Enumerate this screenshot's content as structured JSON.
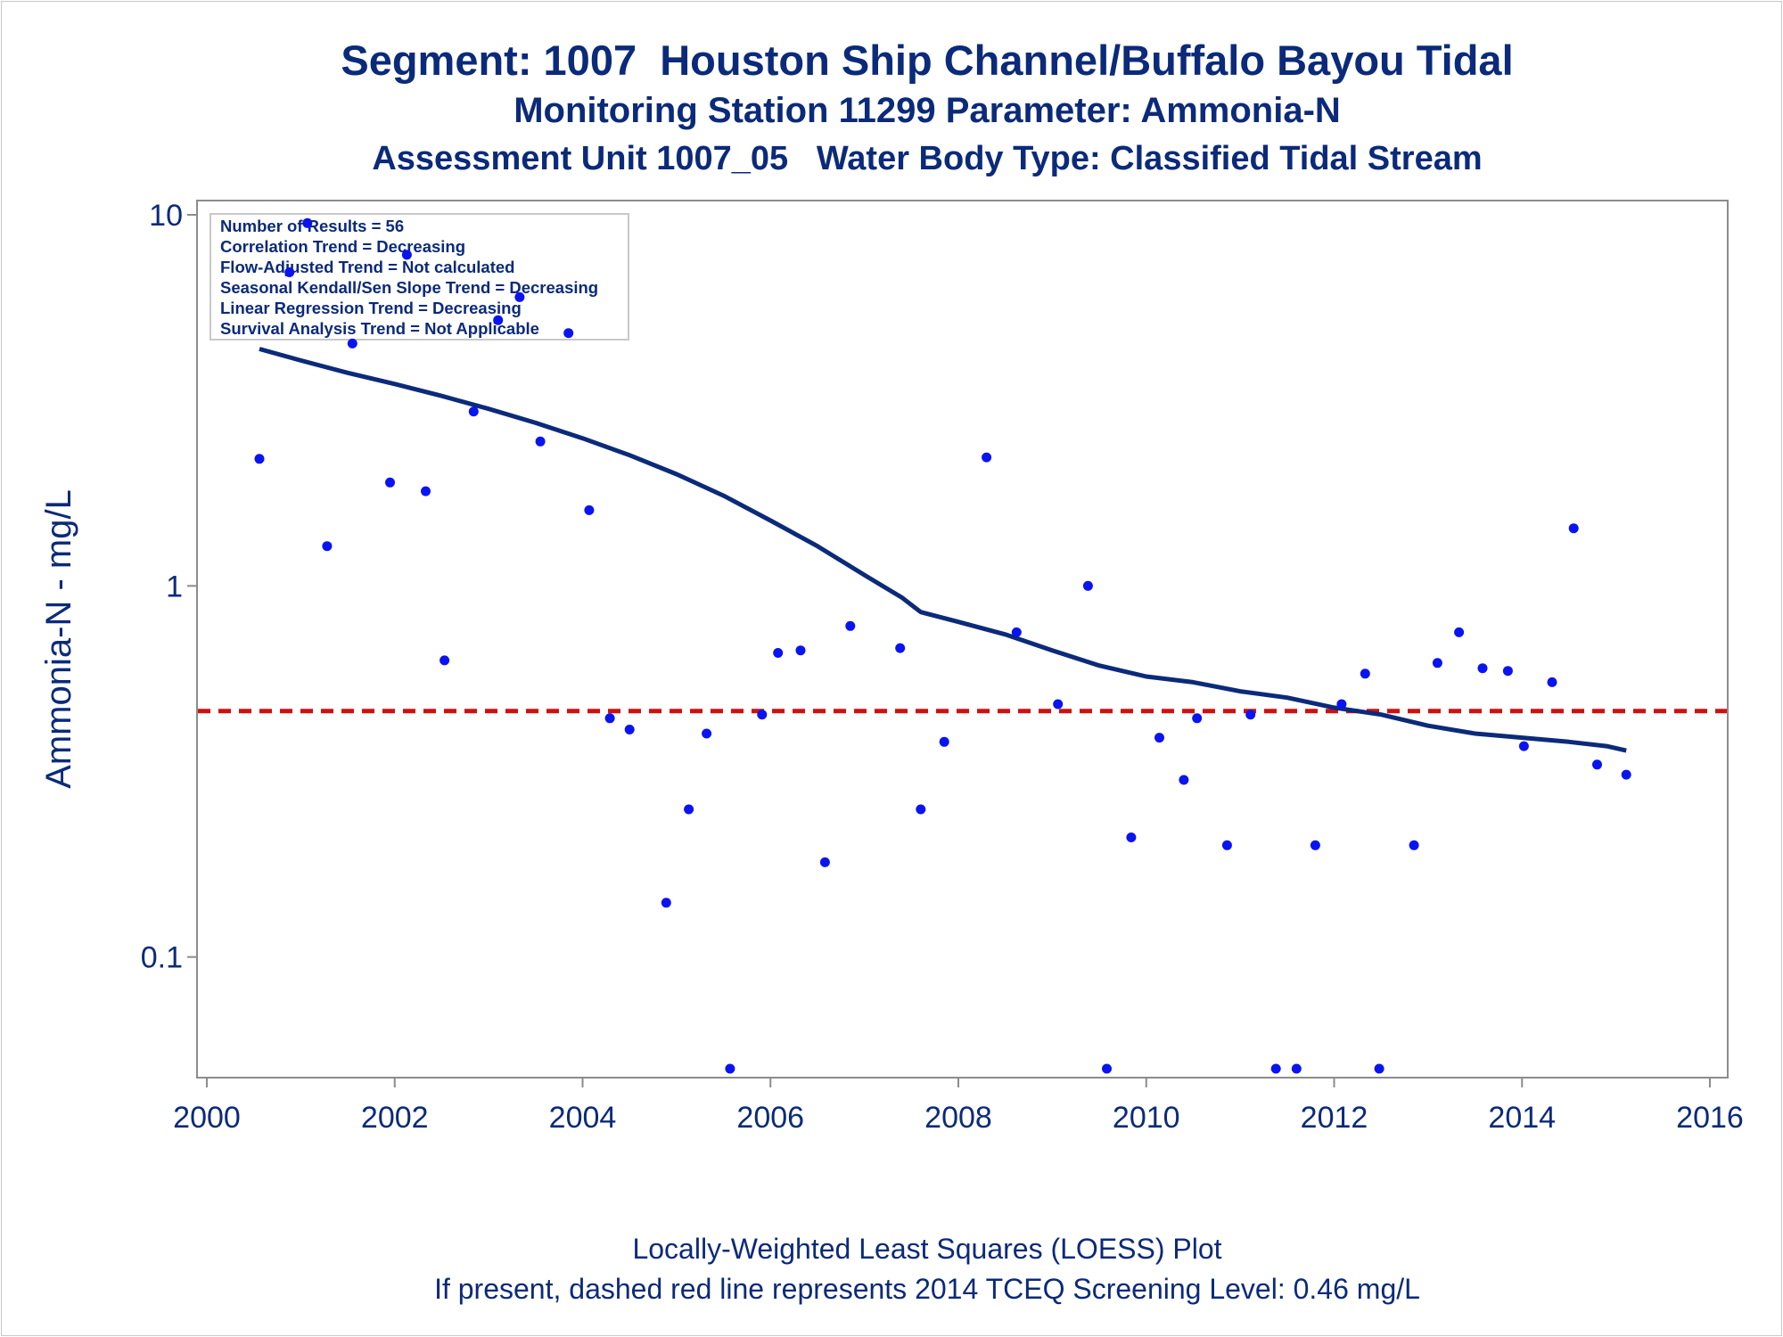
{
  "titles": {
    "main": "Segment: 1007  Houston Ship Channel/Buffalo Bayou Tidal",
    "sub1": "Monitoring Station 11299 Parameter: Ammonia-N",
    "sub2": "Assessment Unit 1007_05   Water Body Type: Classified Tidal Stream"
  },
  "footer": {
    "line1": "Locally-Weighted Least Squares (LOESS) Plot",
    "line2": "If present, dashed red line represents 2014 TCEQ Screening Level: 0.46 mg/L"
  },
  "stats_box": {
    "lines": [
      "Number of Results = 56",
      "Correlation Trend = Decreasing",
      "Flow-Adjusted Trend = Not calculated",
      "Seasonal Kendall/Sen Slope Trend = Decreasing",
      "Linear Regression Trend = Decreasing",
      "Survival Analysis Trend = Not Applicable"
    ]
  },
  "colors": {
    "points": "#0a14f0",
    "loess": "#0b2a7a",
    "screening": "#d01010",
    "text": "#0b2a7a",
    "axis": "#8c8c8c"
  },
  "chart_data": {
    "type": "scatter",
    "xlabel": "",
    "ylabel": "Ammonia-N - mg/L",
    "xlim": [
      2000,
      2016
    ],
    "ylim": [
      0.05,
      10
    ],
    "yscale": "log",
    "xticks": [
      2000,
      2002,
      2004,
      2006,
      2008,
      2010,
      2012,
      2014,
      2016
    ],
    "yticks": [
      {
        "value": 10,
        "label": "10"
      },
      {
        "value": 1,
        "label": "1"
      },
      {
        "value": 0.1,
        "label": "0.1"
      }
    ],
    "screening_level": 0.46,
    "points": [
      [
        2000.56,
        2.2
      ],
      [
        2000.88,
        7.0
      ],
      [
        2001.07,
        9.5
      ],
      [
        2001.28,
        1.28
      ],
      [
        2001.55,
        4.5
      ],
      [
        2001.95,
        1.9
      ],
      [
        2002.13,
        7.8
      ],
      [
        2002.33,
        1.8
      ],
      [
        2002.53,
        0.63
      ],
      [
        2002.84,
        2.95
      ],
      [
        2003.1,
        5.2
      ],
      [
        2003.33,
        6.0
      ],
      [
        2003.55,
        2.45
      ],
      [
        2003.85,
        4.8
      ],
      [
        2004.07,
        1.6
      ],
      [
        2004.29,
        0.44
      ],
      [
        2004.5,
        0.41
      ],
      [
        2004.89,
        0.14
      ],
      [
        2005.13,
        0.25
      ],
      [
        2005.32,
        0.4
      ],
      [
        2005.57,
        0.05
      ],
      [
        2005.91,
        0.45
      ],
      [
        2006.08,
        0.66
      ],
      [
        2006.32,
        0.67
      ],
      [
        2006.58,
        0.18
      ],
      [
        2006.85,
        0.78
      ],
      [
        2007.38,
        0.68
      ],
      [
        2007.6,
        0.25
      ],
      [
        2007.85,
        0.38
      ],
      [
        2008.3,
        2.22
      ],
      [
        2008.62,
        0.75
      ],
      [
        2009.06,
        0.48
      ],
      [
        2009.38,
        1.0
      ],
      [
        2009.58,
        0.05
      ],
      [
        2009.84,
        0.21
      ],
      [
        2010.14,
        0.39
      ],
      [
        2010.4,
        0.3
      ],
      [
        2010.54,
        0.44
      ],
      [
        2010.86,
        0.2
      ],
      [
        2011.11,
        0.45
      ],
      [
        2011.38,
        0.05
      ],
      [
        2011.6,
        0.05
      ],
      [
        2011.8,
        0.2
      ],
      [
        2012.08,
        0.48
      ],
      [
        2012.33,
        0.58
      ],
      [
        2012.48,
        0.05
      ],
      [
        2012.85,
        0.2
      ],
      [
        2013.1,
        0.62
      ],
      [
        2013.33,
        0.75
      ],
      [
        2013.58,
        0.6
      ],
      [
        2013.85,
        0.59
      ],
      [
        2014.02,
        0.37
      ],
      [
        2014.32,
        0.55
      ],
      [
        2014.55,
        1.43
      ],
      [
        2014.8,
        0.33
      ],
      [
        2015.11,
        0.31
      ]
    ],
    "loess": [
      [
        2000.56,
        4.35
      ],
      [
        2001.0,
        4.05
      ],
      [
        2001.5,
        3.75
      ],
      [
        2002.0,
        3.5
      ],
      [
        2002.5,
        3.25
      ],
      [
        2003.0,
        3.0
      ],
      [
        2003.5,
        2.75
      ],
      [
        2004.0,
        2.5
      ],
      [
        2004.5,
        2.25
      ],
      [
        2005.0,
        2.0
      ],
      [
        2005.5,
        1.75
      ],
      [
        2006.0,
        1.5
      ],
      [
        2006.5,
        1.28
      ],
      [
        2007.0,
        1.07
      ],
      [
        2007.4,
        0.93
      ],
      [
        2007.6,
        0.85
      ],
      [
        2008.0,
        0.8
      ],
      [
        2008.5,
        0.74
      ],
      [
        2009.0,
        0.67
      ],
      [
        2009.5,
        0.61
      ],
      [
        2010.0,
        0.57
      ],
      [
        2010.5,
        0.55
      ],
      [
        2011.0,
        0.52
      ],
      [
        2011.5,
        0.5
      ],
      [
        2012.0,
        0.47
      ],
      [
        2012.5,
        0.45
      ],
      [
        2013.0,
        0.42
      ],
      [
        2013.5,
        0.4
      ],
      [
        2014.0,
        0.39
      ],
      [
        2014.5,
        0.38
      ],
      [
        2014.9,
        0.37
      ],
      [
        2015.11,
        0.36
      ]
    ]
  }
}
